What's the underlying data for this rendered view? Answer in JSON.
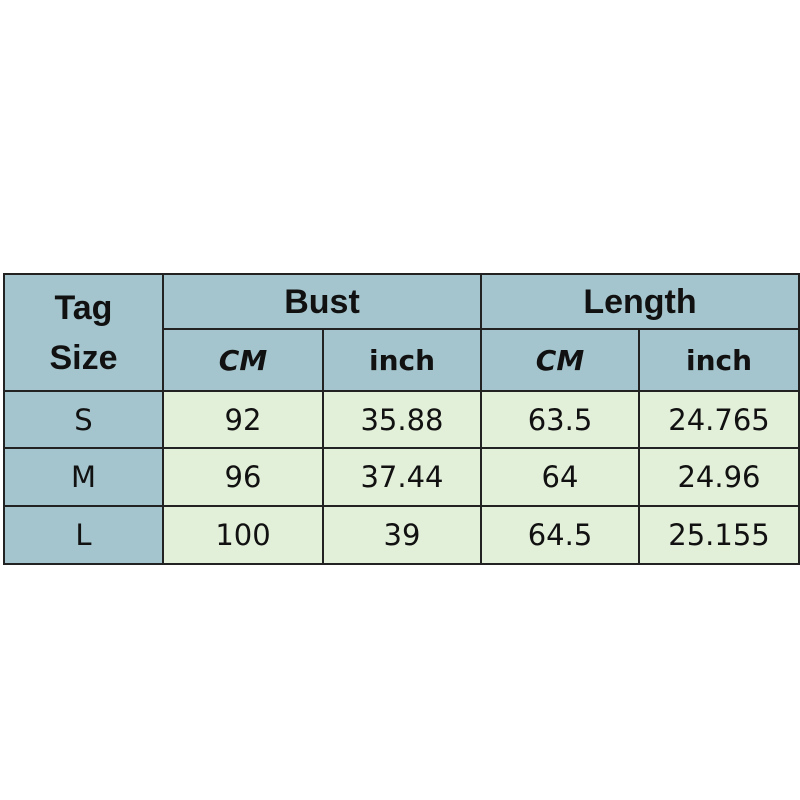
{
  "headers": {
    "tag_size": "Tag Size",
    "bust": "Bust",
    "length": "Length",
    "units": [
      "CM",
      "inch",
      "CM",
      "inch"
    ]
  },
  "rows": [
    {
      "size": "S",
      "bust_cm": "92",
      "bust_inch": "35.88",
      "length_cm": "63.5",
      "length_inch": "24.765"
    },
    {
      "size": "M",
      "bust_cm": "96",
      "bust_inch": "37.44",
      "length_cm": "64",
      "length_inch": "24.96"
    },
    {
      "size": "L",
      "bust_cm": "100",
      "bust_inch": "39",
      "length_cm": "64.5",
      "length_inch": "25.155"
    }
  ],
  "colors": {
    "header": "#a4c5cd",
    "cell": "#e2efd9"
  }
}
